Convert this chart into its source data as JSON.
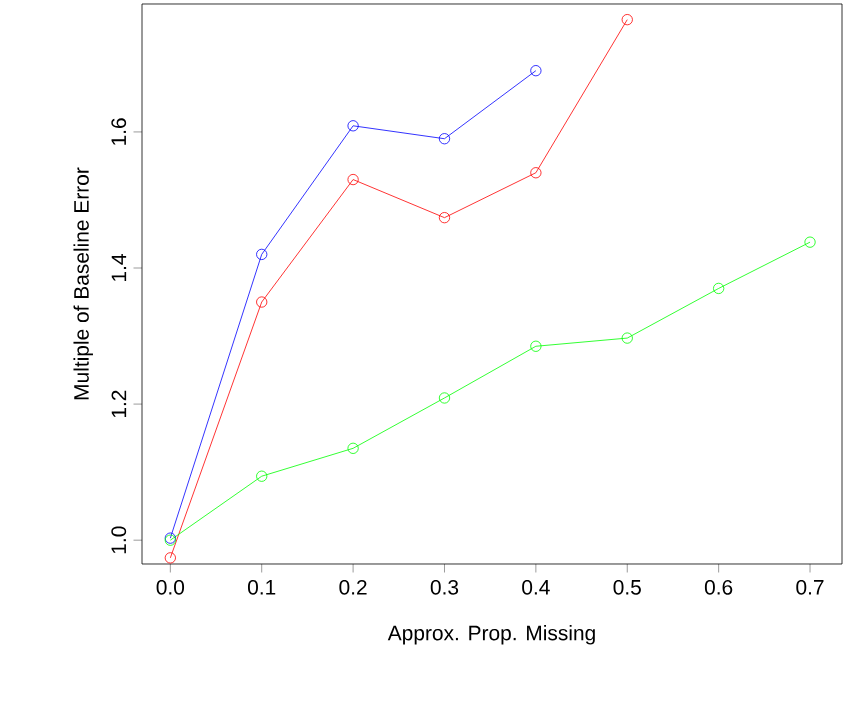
{
  "chart_data": {
    "type": "line",
    "xlabel": "Approx. Prop. Missing",
    "ylabel": "Multiple of Baseline Error",
    "xlim": [
      -0.031,
      0.735
    ],
    "ylim": [
      0.965,
      1.788
    ],
    "xticks": [
      {
        "value": 0,
        "label": "0.0"
      },
      {
        "value": 0.1,
        "label": "0.1"
      },
      {
        "value": 0.2,
        "label": "0.2"
      },
      {
        "value": 0.3,
        "label": "0.3"
      },
      {
        "value": 0.4,
        "label": "0.4"
      },
      {
        "value": 0.5,
        "label": "0.5"
      },
      {
        "value": 0.6,
        "label": "0.6"
      },
      {
        "value": 0.7,
        "label": "0.7"
      }
    ],
    "yticks": [
      {
        "value": 1.0,
        "label": "1.0"
      },
      {
        "value": 1.2,
        "label": "1.2"
      },
      {
        "value": 1.4,
        "label": "1.4"
      },
      {
        "value": 1.6,
        "label": "1.6"
      }
    ],
    "marker": "circle",
    "line_style": "solid",
    "series": [
      {
        "color": "#0000ff",
        "x": [
          0,
          0.1,
          0.2,
          0.3,
          0.4
        ],
        "values": [
          1.003,
          1.42,
          1.609,
          1.59,
          1.69
        ]
      },
      {
        "color": "#ff0000",
        "x": [
          0,
          0.1,
          0.2,
          0.3,
          0.4,
          0.5
        ],
        "values": [
          0.974,
          1.35,
          1.53,
          1.474,
          1.54,
          1.765
        ]
      },
      {
        "color": "#00ff00",
        "x": [
          0,
          0.1,
          0.2,
          0.3,
          0.4,
          0.5,
          0.6,
          0.7
        ],
        "values": [
          1.0,
          1.094,
          1.135,
          1.209,
          1.285,
          1.297,
          1.37,
          1.438
        ]
      }
    ]
  }
}
